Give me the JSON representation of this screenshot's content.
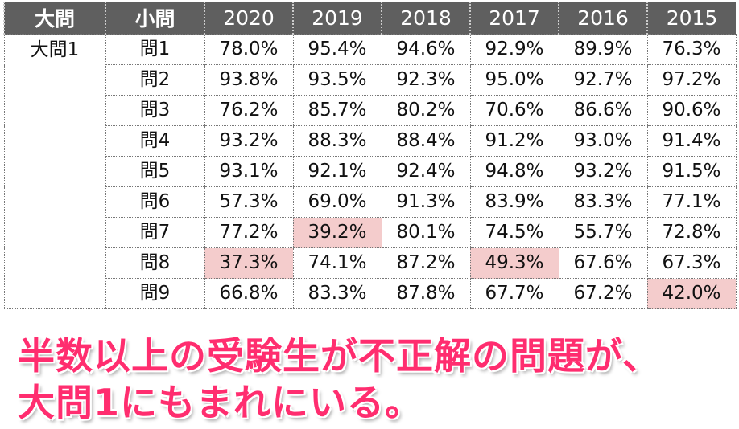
{
  "headers": [
    "大問",
    "小問",
    "2020",
    "2019",
    "2018",
    "2017",
    "2016",
    "2015"
  ],
  "group": "大問1",
  "rows": [
    {
      "q": "問1",
      "v": [
        "78.0%",
        "95.4%",
        "94.6%",
        "92.9%",
        "89.9%",
        "76.3%"
      ],
      "hl": []
    },
    {
      "q": "問2",
      "v": [
        "93.8%",
        "93.5%",
        "92.3%",
        "95.0%",
        "92.7%",
        "97.2%"
      ],
      "hl": []
    },
    {
      "q": "問3",
      "v": [
        "76.2%",
        "85.7%",
        "80.2%",
        "70.6%",
        "86.6%",
        "90.6%"
      ],
      "hl": []
    },
    {
      "q": "問4",
      "v": [
        "93.2%",
        "88.3%",
        "88.4%",
        "91.2%",
        "93.0%",
        "91.4%"
      ],
      "hl": []
    },
    {
      "q": "問5",
      "v": [
        "93.1%",
        "92.1%",
        "92.4%",
        "94.8%",
        "93.2%",
        "91.5%"
      ],
      "hl": []
    },
    {
      "q": "問6",
      "v": [
        "57.3%",
        "69.0%",
        "91.3%",
        "83.9%",
        "83.3%",
        "77.1%"
      ],
      "hl": []
    },
    {
      "q": "問7",
      "v": [
        "77.2%",
        "39.2%",
        "80.1%",
        "74.5%",
        "55.7%",
        "72.8%"
      ],
      "hl": [
        1
      ]
    },
    {
      "q": "問8",
      "v": [
        "37.3%",
        "74.1%",
        "87.2%",
        "49.3%",
        "67.6%",
        "67.3%"
      ],
      "hl": [
        0,
        3
      ]
    },
    {
      "q": "問9",
      "v": [
        "66.8%",
        "83.3%",
        "87.8%",
        "67.7%",
        "67.2%",
        "42.0%"
      ],
      "hl": [
        5
      ]
    }
  ],
  "caption": {
    "line1": "半数以上の受験生が不正解の問題が、",
    "line2": "大問1にもまれにいる。"
  }
}
